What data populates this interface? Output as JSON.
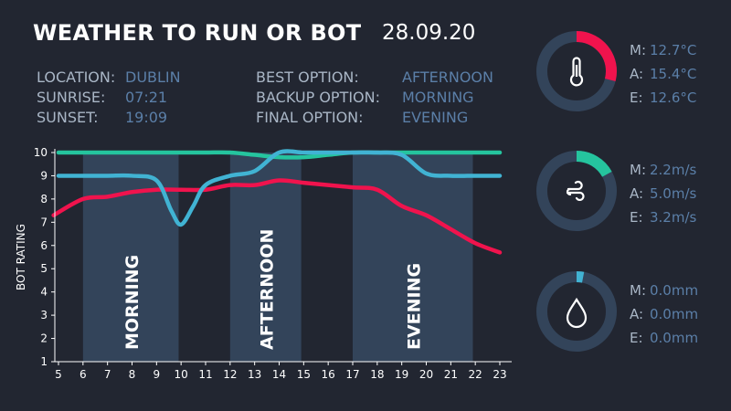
{
  "header": {
    "title": "WEATHER TO RUN OR BOT",
    "date": "28.09.20"
  },
  "info": {
    "left": [
      {
        "label": "LOCATION:",
        "value": "DUBLIN"
      },
      {
        "label": "SUNRISE:",
        "value": "07:21"
      },
      {
        "label": "SUNSET:",
        "value": "19:09"
      }
    ],
    "right": [
      {
        "label": "BEST OPTION:",
        "value": "AFTERNOON"
      },
      {
        "label": "BACKUP OPTION:",
        "value": "MORNING"
      },
      {
        "label": "FINAL OPTION:",
        "value": "EVENING"
      }
    ]
  },
  "gauges": [
    {
      "icon": "thermometer-icon",
      "color": "#f0134d",
      "fraction": 0.29,
      "rows": [
        {
          "label": "M:",
          "value": "12.7°C"
        },
        {
          "label": "A:",
          "value": "15.4°C"
        },
        {
          "label": "E:",
          "value": "12.6°C"
        }
      ]
    },
    {
      "icon": "wind-icon",
      "color": "#25c49e",
      "fraction": 0.17,
      "rows": [
        {
          "label": "M:",
          "value": "2.2m/s"
        },
        {
          "label": "A:",
          "value": "5.0m/s"
        },
        {
          "label": "E:",
          "value": "3.2m/s"
        }
      ]
    },
    {
      "icon": "raindrop-icon",
      "color": "#41b3d3",
      "fraction": 0.03,
      "rows": [
        {
          "label": "M:",
          "value": "0.0mm"
        },
        {
          "label": "A:",
          "value": "0.0mm"
        },
        {
          "label": "E:",
          "value": "0.0mm"
        }
      ]
    }
  ],
  "chart_data": {
    "type": "line",
    "ylabel": "BOT RATING",
    "ylim": [
      1,
      10
    ],
    "xlim": [
      4.8,
      23.5
    ],
    "x_ticks": [
      5,
      6,
      7,
      8,
      9,
      10,
      11,
      12,
      13,
      14,
      15,
      16,
      17,
      18,
      19,
      20,
      21,
      22,
      23
    ],
    "y_ticks": [
      1,
      2,
      3,
      4,
      5,
      6,
      7,
      8,
      9,
      10
    ],
    "periods": [
      {
        "label": "MORNING",
        "start": 6,
        "end": 9.9
      },
      {
        "label": "AFTERNOON",
        "start": 12,
        "end": 14.9
      },
      {
        "label": "EVENING",
        "start": 17,
        "end": 21.9
      }
    ],
    "series": [
      {
        "color": "#25c49e",
        "points": [
          [
            5,
            10
          ],
          [
            6,
            10
          ],
          [
            7,
            10
          ],
          [
            8,
            10
          ],
          [
            9,
            10
          ],
          [
            10,
            10
          ],
          [
            11,
            10
          ],
          [
            12,
            10
          ],
          [
            13,
            9.9
          ],
          [
            14,
            9.8
          ],
          [
            15,
            9.8
          ],
          [
            16,
            9.9
          ],
          [
            17,
            10
          ],
          [
            18,
            10
          ],
          [
            19,
            10
          ],
          [
            20,
            10
          ],
          [
            21,
            10
          ],
          [
            22,
            10
          ],
          [
            23,
            10
          ]
        ]
      },
      {
        "color": "#f0134d",
        "points": [
          [
            4.8,
            7.3
          ],
          [
            6,
            8
          ],
          [
            7,
            8.1
          ],
          [
            8,
            8.3
          ],
          [
            9,
            8.4
          ],
          [
            10,
            8.4
          ],
          [
            11,
            8.4
          ],
          [
            12,
            8.6
          ],
          [
            13,
            8.6
          ],
          [
            14,
            8.8
          ],
          [
            15,
            8.7
          ],
          [
            16,
            8.6
          ],
          [
            17,
            8.5
          ],
          [
            18,
            8.4
          ],
          [
            19,
            7.7
          ],
          [
            20,
            7.3
          ],
          [
            21,
            6.7
          ],
          [
            22,
            6.1
          ],
          [
            23,
            5.7
          ]
        ]
      },
      {
        "color": "#41b3d3",
        "points": [
          [
            5,
            9
          ],
          [
            6,
            9
          ],
          [
            7,
            9
          ],
          [
            8,
            9
          ],
          [
            9,
            8.8
          ],
          [
            9.6,
            7.5
          ],
          [
            10,
            6.9
          ],
          [
            10.5,
            7.7
          ],
          [
            11,
            8.6
          ],
          [
            12,
            9
          ],
          [
            13,
            9.2
          ],
          [
            14,
            10
          ],
          [
            15,
            10
          ],
          [
            16,
            10
          ],
          [
            17,
            10
          ],
          [
            18,
            10
          ],
          [
            19,
            9.9
          ],
          [
            20,
            9.1
          ],
          [
            21,
            9
          ],
          [
            22,
            9
          ],
          [
            23,
            9
          ]
        ]
      }
    ]
  }
}
